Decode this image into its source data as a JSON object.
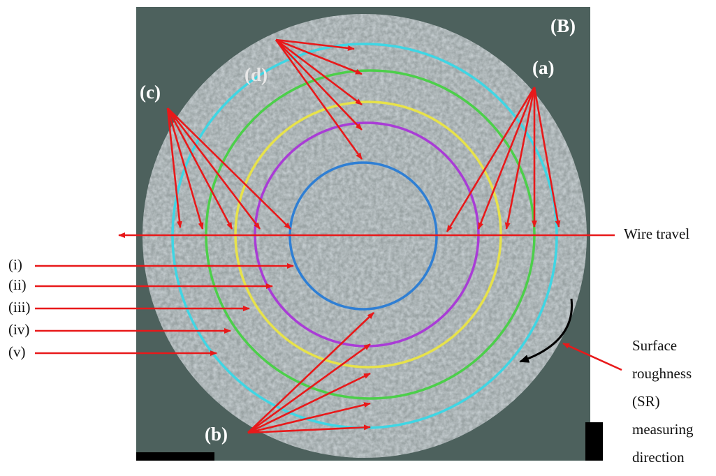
{
  "panel_label": "(B)",
  "labels": {
    "a": "(a)",
    "b": "(b)",
    "c": "(c)",
    "d": "(d)"
  },
  "rings": [
    "(i)",
    "(ii)",
    "(iii)",
    "(iv)",
    "(v)"
  ],
  "wire_travel": "Wire travel",
  "direction_note": [
    "Surface",
    "roughness",
    "(SR)",
    "measuring",
    "direction"
  ]
}
